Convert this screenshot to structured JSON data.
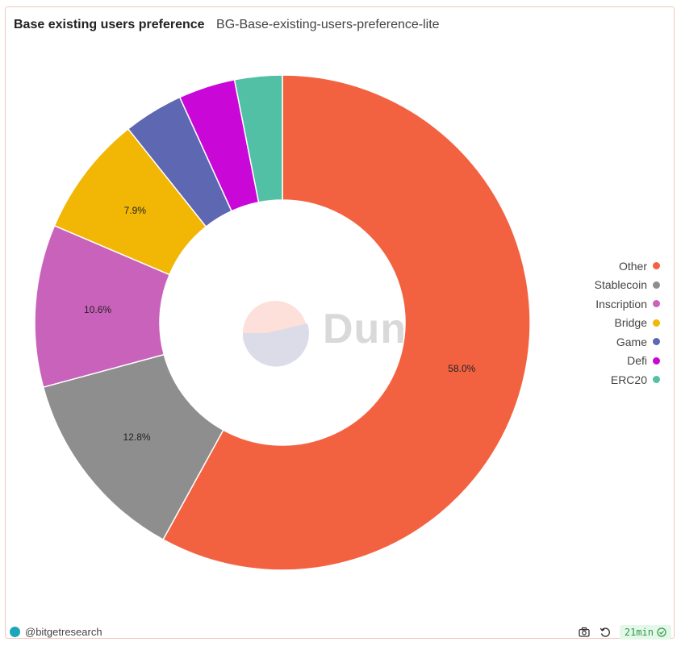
{
  "header": {
    "title": "Base existing users preference",
    "subtitle": "BG-Base-existing-users-preference-lite"
  },
  "watermark": {
    "text": "Dune"
  },
  "chart_data": {
    "type": "pie",
    "donut": true,
    "categories": [
      "Other",
      "Stablecoin",
      "Inscription",
      "Bridge",
      "Game",
      "Defi",
      "ERC20"
    ],
    "values": [
      58.0,
      12.8,
      10.6,
      7.9,
      3.9,
      3.7,
      3.1
    ],
    "labels": [
      "58.0%",
      "12.8%",
      "10.6%",
      "7.9%",
      "",
      "",
      ""
    ],
    "colors": [
      "#f26241",
      "#8e8e8e",
      "#c962bb",
      "#f2b705",
      "#5d67b2",
      "#c908d8",
      "#52c0a5"
    ],
    "legend_position": "right",
    "title": "Base existing users preference"
  },
  "footer": {
    "author": "@bitgetresearch",
    "badge": "21min"
  },
  "icons": {
    "camera": "camera-icon",
    "refresh": "refresh-icon",
    "check": "check-circle-icon"
  }
}
